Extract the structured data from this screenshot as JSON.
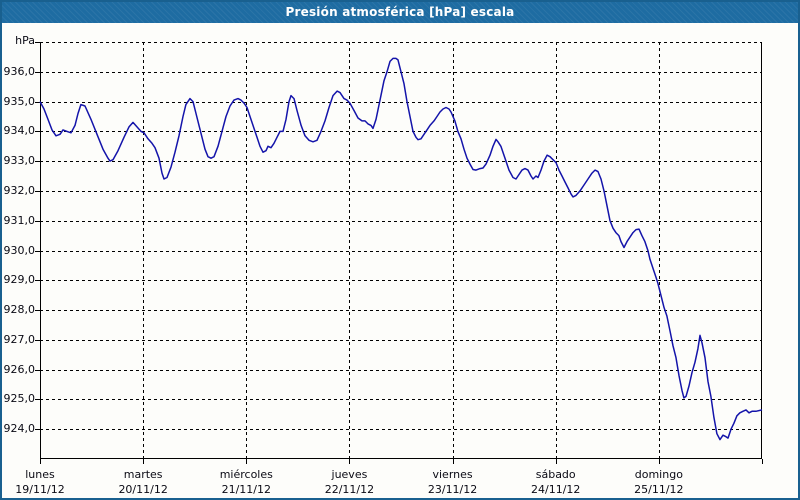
{
  "title": "Presión atmosférica [hPa] escala",
  "colors": {
    "titlebar_bg": "#1e6ca2",
    "titlebar_text": "#ffffff",
    "window_border": "#19608f",
    "background": "#fdfdfa",
    "line": "#1414aa",
    "grid": "#000000",
    "label_text": "#0a0a14"
  },
  "chart_data": {
    "type": "line",
    "title": "Presión atmosférica [hPa] escala",
    "ylabel": "hPa",
    "ylim": [
      923,
      937
    ],
    "grid": "dashed",
    "legend": "none",
    "y_ticks": [
      {
        "value": 936,
        "label": "936,0"
      },
      {
        "value": 935,
        "label": "935,0"
      },
      {
        "value": 934,
        "label": "934,0"
      },
      {
        "value": 933,
        "label": "933,0"
      },
      {
        "value": 932,
        "label": "932,0"
      },
      {
        "value": 931,
        "label": "931,0"
      },
      {
        "value": 930,
        "label": "930,0"
      },
      {
        "value": 929,
        "label": "929,0"
      },
      {
        "value": 928,
        "label": "928,0"
      },
      {
        "value": 927,
        "label": "927,0"
      },
      {
        "value": 926,
        "label": "926,0"
      },
      {
        "value": 925,
        "label": "925,0"
      },
      {
        "value": 924,
        "label": "924,0"
      }
    ],
    "x_days": [
      {
        "name": "lunes",
        "date": "19/11/12"
      },
      {
        "name": "martes",
        "date": "20/11/12"
      },
      {
        "name": "miércoles",
        "date": "21/11/12"
      },
      {
        "name": "jueves",
        "date": "22/11/12"
      },
      {
        "name": "viernes",
        "date": "23/11/12"
      },
      {
        "name": "sábado",
        "date": "24/11/12"
      },
      {
        "name": "domingo",
        "date": "25/11/12"
      }
    ],
    "xlim_days": [
      0,
      7
    ],
    "series": [
      {
        "name": "Presión atmosférica",
        "units": "hPa",
        "color": "#1414aa",
        "points": [
          [
            0,
            935
          ],
          [
            0.039,
            934.75
          ],
          [
            0.078,
            934.4
          ],
          [
            0.116,
            934.05
          ],
          [
            0.155,
            933.85
          ],
          [
            0.194,
            933.9
          ],
          [
            0.223,
            934.05
          ],
          [
            0.262,
            934
          ],
          [
            0.301,
            933.95
          ],
          [
            0.339,
            934.2
          ],
          [
            0.368,
            934.6
          ],
          [
            0.397,
            934.9
          ],
          [
            0.436,
            934.85
          ],
          [
            0.494,
            934.4
          ],
          [
            0.553,
            933.9
          ],
          [
            0.611,
            933.4
          ],
          [
            0.659,
            933.1
          ],
          [
            0.679,
            933
          ],
          [
            0.708,
            933.05
          ],
          [
            0.756,
            933.35
          ],
          [
            0.814,
            933.8
          ],
          [
            0.863,
            934.15
          ],
          [
            0.902,
            934.3
          ],
          [
            0.94,
            934.15
          ],
          [
            0.979,
            934
          ],
          [
            1.008,
            933.95
          ],
          [
            1.047,
            933.75
          ],
          [
            1.086,
            933.6
          ],
          [
            1.115,
            933.45
          ],
          [
            1.154,
            933.1
          ],
          [
            1.183,
            932.6
          ],
          [
            1.202,
            932.4
          ],
          [
            1.231,
            932.45
          ],
          [
            1.27,
            932.8
          ],
          [
            1.309,
            933.3
          ],
          [
            1.348,
            933.85
          ],
          [
            1.386,
            934.5
          ],
          [
            1.415,
            934.9
          ],
          [
            1.454,
            935.1
          ],
          [
            1.483,
            935
          ],
          [
            1.512,
            934.6
          ],
          [
            1.542,
            934.2
          ],
          [
            1.571,
            933.8
          ],
          [
            1.6,
            933.4
          ],
          [
            1.629,
            933.15
          ],
          [
            1.658,
            933.1
          ],
          [
            1.687,
            933.15
          ],
          [
            1.726,
            933.5
          ],
          [
            1.765,
            934
          ],
          [
            1.803,
            934.5
          ],
          [
            1.842,
            934.85
          ],
          [
            1.881,
            935.05
          ],
          [
            1.92,
            935.1
          ],
          [
            1.949,
            935.05
          ],
          [
            1.978,
            934.95
          ],
          [
            2.007,
            934.8
          ],
          [
            2.036,
            934.5
          ],
          [
            2.065,
            934.2
          ],
          [
            2.104,
            933.8
          ],
          [
            2.133,
            933.5
          ],
          [
            2.162,
            933.3
          ],
          [
            2.191,
            933.35
          ],
          [
            2.211,
            933.5
          ],
          [
            2.24,
            933.45
          ],
          [
            2.269,
            933.6
          ],
          [
            2.298,
            933.8
          ],
          [
            2.327,
            934
          ],
          [
            2.356,
            934
          ],
          [
            2.385,
            934.4
          ],
          [
            2.414,
            935
          ],
          [
            2.434,
            935.2
          ],
          [
            2.463,
            935.1
          ],
          [
            2.492,
            934.7
          ],
          [
            2.531,
            934.2
          ],
          [
            2.569,
            933.85
          ],
          [
            2.608,
            933.7
          ],
          [
            2.647,
            933.65
          ],
          [
            2.686,
            933.7
          ],
          [
            2.724,
            934
          ],
          [
            2.763,
            934.35
          ],
          [
            2.802,
            934.8
          ],
          [
            2.841,
            935.2
          ],
          [
            2.88,
            935.35
          ],
          [
            2.909,
            935.3
          ],
          [
            2.947,
            935.1
          ],
          [
            2.976,
            935.05
          ],
          [
            3.005,
            934.95
          ],
          [
            3.044,
            934.7
          ],
          [
            3.083,
            934.45
          ],
          [
            3.122,
            934.35
          ],
          [
            3.151,
            934.35
          ],
          [
            3.18,
            934.25
          ],
          [
            3.209,
            934.2
          ],
          [
            3.229,
            934.1
          ],
          [
            3.258,
            934.4
          ],
          [
            3.296,
            935.05
          ],
          [
            3.335,
            935.7
          ],
          [
            3.364,
            936
          ],
          [
            3.393,
            936.35
          ],
          [
            3.422,
            936.45
          ],
          [
            3.451,
            936.45
          ],
          [
            3.471,
            936.4
          ],
          [
            3.5,
            936
          ],
          [
            3.529,
            935.6
          ],
          [
            3.558,
            935
          ],
          [
            3.587,
            934.5
          ],
          [
            3.616,
            934
          ],
          [
            3.645,
            933.8
          ],
          [
            3.665,
            933.72
          ],
          [
            3.694,
            933.75
          ],
          [
            3.723,
            933.9
          ],
          [
            3.752,
            934.05
          ],
          [
            3.781,
            934.2
          ],
          [
            3.82,
            934.35
          ],
          [
            3.849,
            934.5
          ],
          [
            3.878,
            934.65
          ],
          [
            3.907,
            934.75
          ],
          [
            3.936,
            934.8
          ],
          [
            3.965,
            934.75
          ],
          [
            3.985,
            934.65
          ],
          [
            4.023,
            934.35
          ],
          [
            4.052,
            934
          ],
          [
            4.082,
            933.75
          ],
          [
            4.111,
            933.4
          ],
          [
            4.14,
            933.1
          ],
          [
            4.169,
            932.9
          ],
          [
            4.198,
            932.72
          ],
          [
            4.227,
            932.7
          ],
          [
            4.266,
            932.75
          ],
          [
            4.295,
            932.77
          ],
          [
            4.324,
            932.9
          ],
          [
            4.363,
            933.2
          ],
          [
            4.392,
            933.5
          ],
          [
            4.421,
            933.73
          ],
          [
            4.44,
            933.65
          ],
          [
            4.469,
            933.5
          ],
          [
            4.508,
            933.1
          ],
          [
            4.547,
            932.7
          ],
          [
            4.586,
            932.45
          ],
          [
            4.615,
            932.4
          ],
          [
            4.644,
            932.55
          ],
          [
            4.673,
            932.7
          ],
          [
            4.702,
            932.75
          ],
          [
            4.731,
            932.7
          ],
          [
            4.76,
            932.5
          ],
          [
            4.78,
            932.4
          ],
          [
            4.809,
            932.5
          ],
          [
            4.828,
            932.45
          ],
          [
            4.857,
            932.7
          ],
          [
            4.886,
            933
          ],
          [
            4.916,
            933.2
          ],
          [
            4.945,
            933.15
          ],
          [
            4.974,
            933.05
          ],
          [
            5.003,
            932.95
          ],
          [
            5.032,
            932.7
          ],
          [
            5.061,
            932.5
          ],
          [
            5.09,
            932.3
          ],
          [
            5.119,
            932.1
          ],
          [
            5.148,
            931.9
          ],
          [
            5.168,
            931.8
          ],
          [
            5.197,
            931.85
          ],
          [
            5.235,
            932
          ],
          [
            5.274,
            932.2
          ],
          [
            5.313,
            932.4
          ],
          [
            5.352,
            932.6
          ],
          [
            5.381,
            932.7
          ],
          [
            5.41,
            932.65
          ],
          [
            5.439,
            932.4
          ],
          [
            5.468,
            932
          ],
          [
            5.497,
            931.5
          ],
          [
            5.526,
            931
          ],
          [
            5.555,
            930.75
          ],
          [
            5.584,
            930.6
          ],
          [
            5.613,
            930.5
          ],
          [
            5.633,
            930.3
          ],
          [
            5.662,
            930.1
          ],
          [
            5.691,
            930.3
          ],
          [
            5.72,
            930.45
          ],
          [
            5.749,
            930.6
          ],
          [
            5.778,
            930.7
          ],
          [
            5.807,
            930.72
          ],
          [
            5.836,
            930.5
          ],
          [
            5.865,
            930.3
          ],
          [
            5.894,
            930
          ],
          [
            5.914,
            929.7
          ],
          [
            5.943,
            929.4
          ],
          [
            5.972,
            929.1
          ],
          [
            5.991,
            928.9
          ],
          [
            6.02,
            928.5
          ],
          [
            6.049,
            928.1
          ],
          [
            6.078,
            927.8
          ],
          [
            6.108,
            927.3
          ],
          [
            6.137,
            926.8
          ],
          [
            6.166,
            926.4
          ],
          [
            6.195,
            925.8
          ],
          [
            6.224,
            925.3
          ],
          [
            6.243,
            925.05
          ],
          [
            6.263,
            925.1
          ],
          [
            6.292,
            925.45
          ],
          [
            6.321,
            925.9
          ],
          [
            6.35,
            926.25
          ],
          [
            6.379,
            926.7
          ],
          [
            6.399,
            927.15
          ],
          [
            6.418,
            926.9
          ],
          [
            6.447,
            926.4
          ],
          [
            6.476,
            925.6
          ],
          [
            6.505,
            925.1
          ],
          [
            6.534,
            924.4
          ],
          [
            6.563,
            923.85
          ],
          [
            6.593,
            923.65
          ],
          [
            6.622,
            923.8
          ],
          [
            6.651,
            923.75
          ],
          [
            6.67,
            923.7
          ],
          [
            6.699,
            924
          ],
          [
            6.728,
            924.2
          ],
          [
            6.757,
            924.45
          ],
          [
            6.786,
            924.55
          ],
          [
            6.815,
            924.6
          ],
          [
            6.845,
            924.65
          ],
          [
            6.874,
            924.55
          ],
          [
            6.903,
            924.6
          ],
          [
            6.941,
            924.6
          ],
          [
            7,
            924.65
          ]
        ]
      }
    ]
  }
}
